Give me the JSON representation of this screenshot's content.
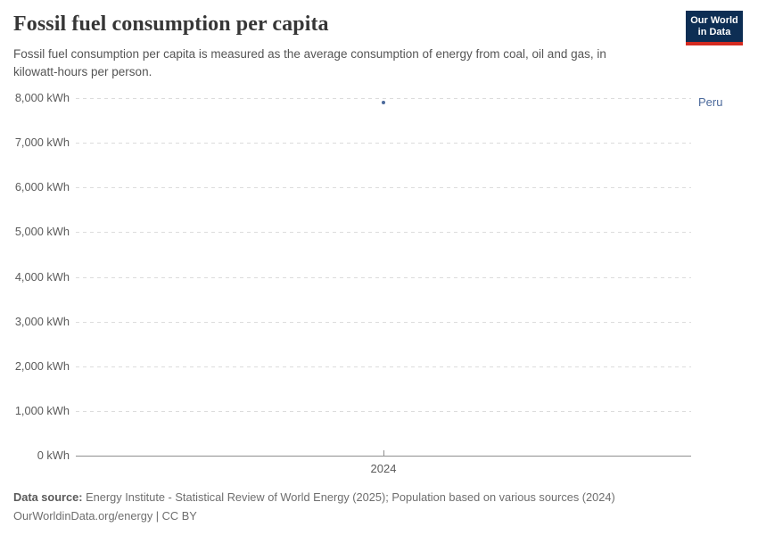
{
  "header": {
    "title": "Fossil fuel consumption per capita",
    "subtitle": "Fossil fuel consumption per capita is measured as the average consumption of energy from coal, oil and gas, in kilowatt-hours per person.",
    "logo": {
      "line1": "Our World",
      "line2": "in Data",
      "bg_color": "#0d2e54",
      "accent_color": "#d42b21"
    }
  },
  "chart_data": {
    "type": "scatter",
    "title": "Fossil fuel consumption per capita",
    "unit": "kWh",
    "xlabel": "",
    "ylabel": "",
    "ylim": [
      0,
      8000
    ],
    "grid": "dashed-horizontal",
    "legend_position": "right-inline-label",
    "yticks": [
      {
        "value": 0,
        "label": "0 kWh"
      },
      {
        "value": 1000,
        "label": "1,000 kWh"
      },
      {
        "value": 2000,
        "label": "2,000 kWh"
      },
      {
        "value": 3000,
        "label": "3,000 kWh"
      },
      {
        "value": 4000,
        "label": "4,000 kWh"
      },
      {
        "value": 5000,
        "label": "5,000 kWh"
      },
      {
        "value": 6000,
        "label": "6,000 kWh"
      },
      {
        "value": 7000,
        "label": "7,000 kWh"
      },
      {
        "value": 8000,
        "label": "8,000 kWh"
      }
    ],
    "xticks": [
      {
        "value": 2024,
        "label": "2024"
      }
    ],
    "series": [
      {
        "name": "Peru",
        "color": "#4c6a9c",
        "points": [
          {
            "x": 2024,
            "y": 7900
          }
        ]
      }
    ]
  },
  "footer": {
    "source_label": "Data source:",
    "source_text": " Energy Institute - Statistical Review of World Energy (2025); Population based on various sources (2024)",
    "license_text": "OurWorldinData.org/energy | CC BY"
  }
}
